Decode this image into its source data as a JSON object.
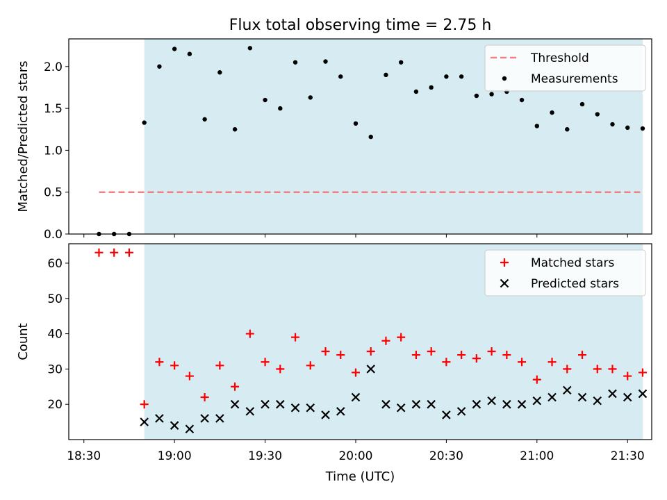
{
  "chart_data": {
    "type": "scatter",
    "title": "Flux total observing time = 2.75 h",
    "xlabel": "Time (UTC)",
    "x_tick_labels": [
      "18:30",
      "19:00",
      "19:30",
      "20:00",
      "20:30",
      "21:00",
      "21:30"
    ],
    "x_range": [
      "18:25",
      "21:38"
    ],
    "times": [
      "18:35",
      "18:40",
      "18:45",
      "18:50",
      "18:55",
      "19:00",
      "19:05",
      "19:10",
      "19:15",
      "19:20",
      "19:25",
      "19:30",
      "19:35",
      "19:40",
      "19:45",
      "19:50",
      "19:55",
      "20:00",
      "20:05",
      "20:10",
      "20:15",
      "20:20",
      "20:25",
      "20:30",
      "20:35",
      "20:40",
      "20:45",
      "20:50",
      "20:55",
      "21:00",
      "21:05",
      "21:10",
      "21:15",
      "21:20",
      "21:25",
      "21:30",
      "21:35"
    ],
    "shaded_span": {
      "start": "18:50",
      "end": "21:35",
      "color": "#add8e6"
    },
    "panels": [
      {
        "ylabel": "Matched/Predicted stars",
        "ylim": [
          0,
          2.33
        ],
        "yticks": [
          0.0,
          0.5,
          1.0,
          1.5,
          2.0
        ],
        "ytick_labels": [
          "0.0",
          "0.5",
          "1.0",
          "1.5",
          "2.0"
        ],
        "legend_position": "top-right",
        "threshold": {
          "name": "Threshold",
          "value": 0.5,
          "x_start": "18:35",
          "x_end": "21:35",
          "color": "#f08080"
        },
        "series": [
          {
            "name": "Measurements",
            "marker": "dot",
            "color": "#000000",
            "values": [
              0.0,
              0.0,
              0.0,
              1.33,
              2.0,
              2.21,
              2.15,
              1.37,
              1.93,
              1.25,
              2.22,
              1.6,
              1.5,
              2.05,
              1.63,
              2.06,
              1.88,
              1.32,
              1.16,
              1.9,
              2.05,
              1.7,
              1.75,
              1.88,
              1.88,
              1.65,
              1.67,
              1.7,
              1.6,
              1.29,
              1.45,
              1.25,
              1.55,
              1.43,
              1.31,
              1.27,
              1.26
            ]
          }
        ]
      },
      {
        "ylabel": "Count",
        "ylim": [
          10,
          65.5
        ],
        "yticks": [
          20,
          30,
          40,
          50,
          60
        ],
        "ytick_labels": [
          "20",
          "30",
          "40",
          "50",
          "60"
        ],
        "legend_position": "top-right",
        "series": [
          {
            "name": "Matched stars",
            "marker": "plus",
            "color": "#ff0000",
            "values": [
              63,
              63,
              63,
              20,
              32,
              31,
              28,
              22,
              31,
              25,
              40,
              32,
              30,
              39,
              31,
              35,
              34,
              29,
              35,
              38,
              39,
              34,
              35,
              32,
              34,
              33,
              35,
              34,
              32,
              27,
              32,
              30,
              34,
              30,
              30,
              28,
              29
            ]
          },
          {
            "name": "Predicted stars",
            "marker": "x",
            "color": "#000000",
            "values": [
              null,
              null,
              null,
              15,
              16,
              14,
              13,
              16,
              16,
              20,
              18,
              20,
              20,
              19,
              19,
              17,
              18,
              22,
              30,
              20,
              19,
              20,
              20,
              17,
              18,
              20,
              21,
              20,
              20,
              21,
              22,
              24,
              22,
              21,
              23,
              22,
              23
            ]
          }
        ]
      }
    ]
  }
}
